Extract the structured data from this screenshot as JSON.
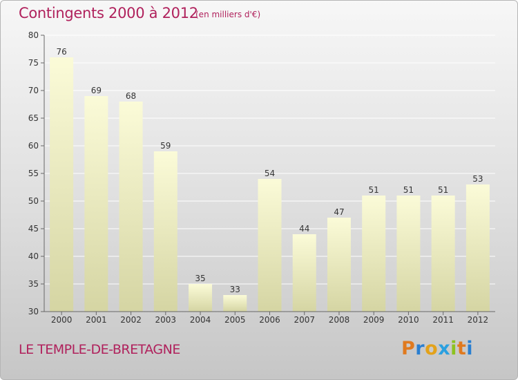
{
  "header": {
    "title": "Contingents 2000 à 2012",
    "unit": "(en milliers d'€)"
  },
  "footer": {
    "place": "LE TEMPLE-DE-BRETAGNE",
    "logo": "Proxiti"
  },
  "colors": {
    "accent": "#b0215c",
    "bar_top": "#fbfbd8",
    "bar_bottom": "#d5d5a3",
    "logo_letters": [
      "#e07a1f",
      "#2a7fd1",
      "#e3a21a",
      "#2aa0e0",
      "#8cc21f",
      "#e07a1f",
      "#2a7fd1"
    ]
  },
  "chart_data": {
    "type": "bar",
    "categories": [
      "2000",
      "2001",
      "2002",
      "2003",
      "2004",
      "2005",
      "2006",
      "2007",
      "2008",
      "2009",
      "2010",
      "2011",
      "2012"
    ],
    "values": [
      76,
      69,
      68,
      59,
      35,
      33,
      54,
      44,
      47,
      51,
      51,
      51,
      53
    ],
    "ylim": [
      30,
      80
    ],
    "yticks": [
      30,
      35,
      40,
      45,
      50,
      55,
      60,
      65,
      70,
      75,
      80
    ],
    "grid": true
  }
}
